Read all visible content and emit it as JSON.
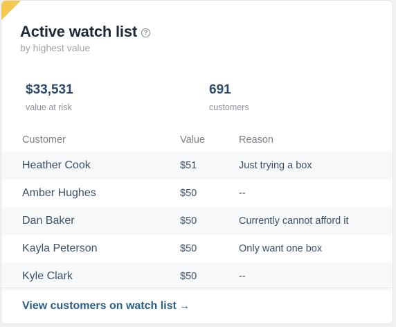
{
  "widget": {
    "title": "Active watch list",
    "help_icon": "question-circle-icon",
    "subtitle": "by highest value",
    "accent_color": "#f4c74f"
  },
  "stats": [
    {
      "value": "$33,531",
      "label": "value at risk"
    },
    {
      "value": "691",
      "label": "customers"
    }
  ],
  "table": {
    "headers": {
      "customer": "Customer",
      "value": "Value",
      "reason": "Reason"
    },
    "rows": [
      {
        "customer": "Heather Cook",
        "value": "$51",
        "reason": "Just trying a box"
      },
      {
        "customer": "Amber Hughes",
        "value": "$50",
        "reason": "--"
      },
      {
        "customer": "Dan Baker",
        "value": "$50",
        "reason": "Currently cannot afford it"
      },
      {
        "customer": "Kayla Peterson",
        "value": "$50",
        "reason": "Only want one box"
      },
      {
        "customer": "Kyle Clark",
        "value": "$50",
        "reason": "--"
      }
    ]
  },
  "footer": {
    "link_label": "View customers on watch list",
    "arrow": "→"
  }
}
